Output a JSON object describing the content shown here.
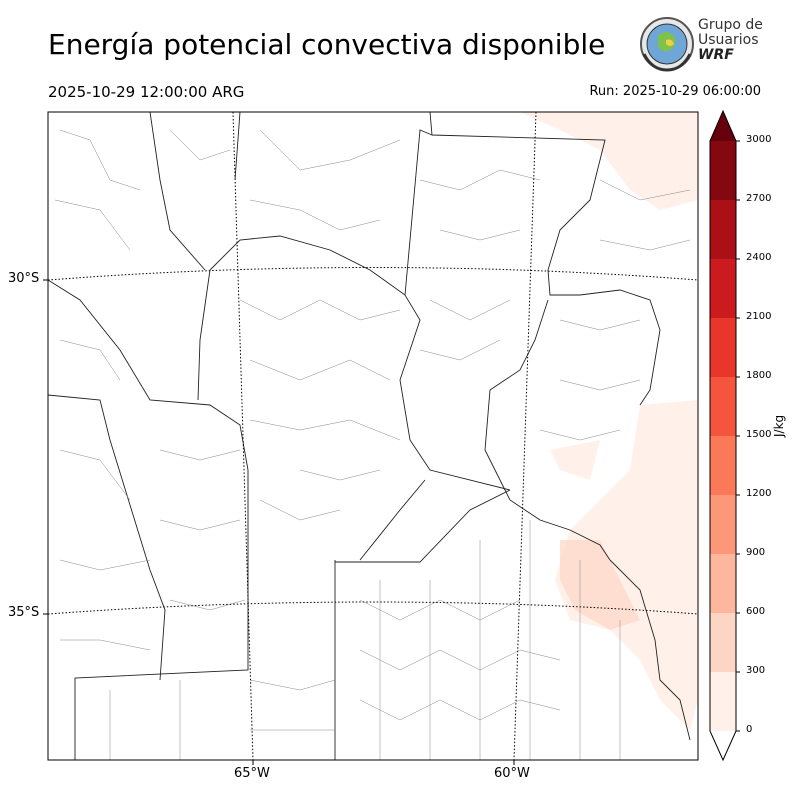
{
  "header": {
    "title": "Energía potencial convectiva disponible",
    "valid_time": "2025-10-29 12:00:00 ARG",
    "run_time": "Run: 2025-10-29 06:00:00"
  },
  "logo": {
    "line1": "Grupo de",
    "line2": "Usuarios",
    "line3": "WRF"
  },
  "map": {
    "lat_labels": [
      "30°S",
      "35°S"
    ],
    "lon_labels": [
      "65°W",
      "60°W"
    ]
  },
  "colorbar": {
    "unit": "J/kg",
    "ticks": [
      "0",
      "300",
      "600",
      "900",
      "1200",
      "1500",
      "1800",
      "2100",
      "2400",
      "2700",
      "3000"
    ],
    "colors": [
      "#fff0ea",
      "#fdd5c4",
      "#fcb79e",
      "#fc9777",
      "#fb7858",
      "#f5553d",
      "#e8362a",
      "#cb1b1e",
      "#ab1016",
      "#850811"
    ],
    "over_color": "#67000d",
    "under_color": "#ffffff"
  }
}
